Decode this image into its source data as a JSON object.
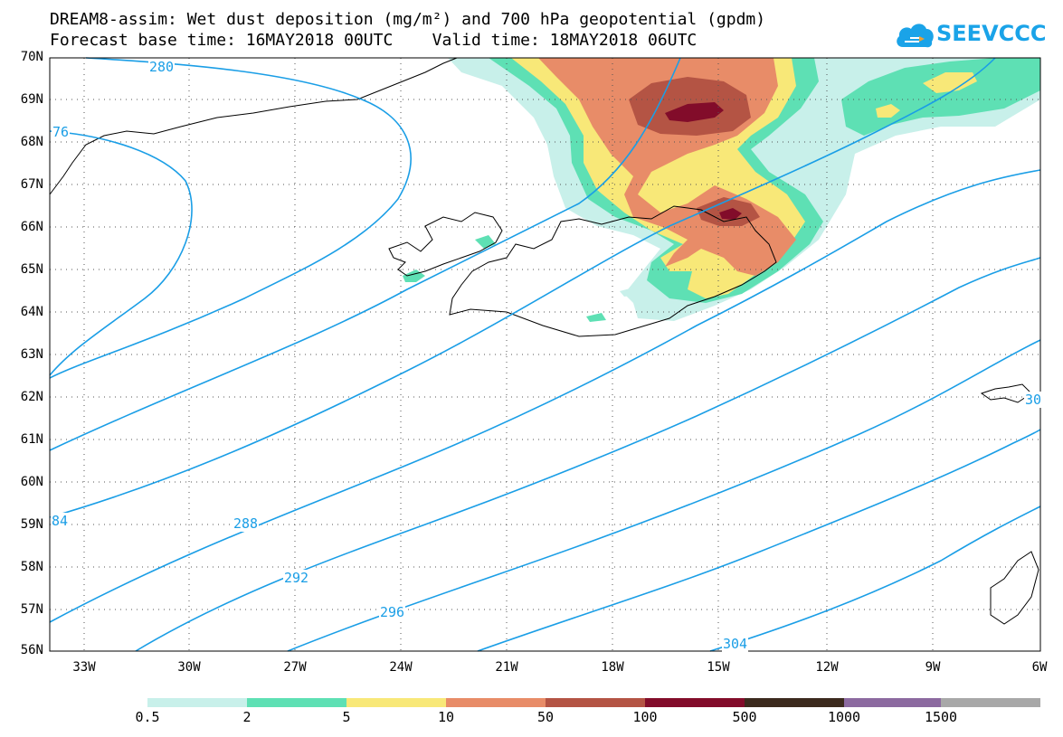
{
  "header": {
    "title_line1": "DREAM8-assim: Wet dust deposition (mg/m²) and 700 hPa geopotential (gpdm)",
    "title_line2": "Forecast base time: 16MAY2018 00UTC    Valid time: 18MAY2018 06UTC"
  },
  "logo": {
    "text": "SEEVCCC",
    "icon": "cloud-icon",
    "color": "#1aa3e8"
  },
  "map": {
    "lat_labels": [
      "70N",
      "69N",
      "68N",
      "67N",
      "66N",
      "65N",
      "64N",
      "63N",
      "62N",
      "61N",
      "60N",
      "59N",
      "58N",
      "57N",
      "56N"
    ],
    "lon_labels": [
      "33W",
      "30W",
      "27W",
      "24W",
      "21W",
      "18W",
      "15W",
      "12W",
      "9W",
      "6W"
    ],
    "contour_color": "#1a9ee6",
    "contour_labels": [
      "280",
      "76",
      "84",
      "288",
      "292",
      "296",
      "304",
      "30"
    ],
    "grid": "dotted"
  },
  "colorbar": {
    "labels": [
      "0.5",
      "2",
      "5",
      "10",
      "50",
      "100",
      "500",
      "1000",
      "1500"
    ],
    "colors": [
      "#c8f0ea",
      "#5ee0b4",
      "#f8e878",
      "#e88c68",
      "#b45444",
      "#820c2a",
      "#3c2a1e",
      "#8c6aa0",
      "#a8a8a8"
    ]
  }
}
